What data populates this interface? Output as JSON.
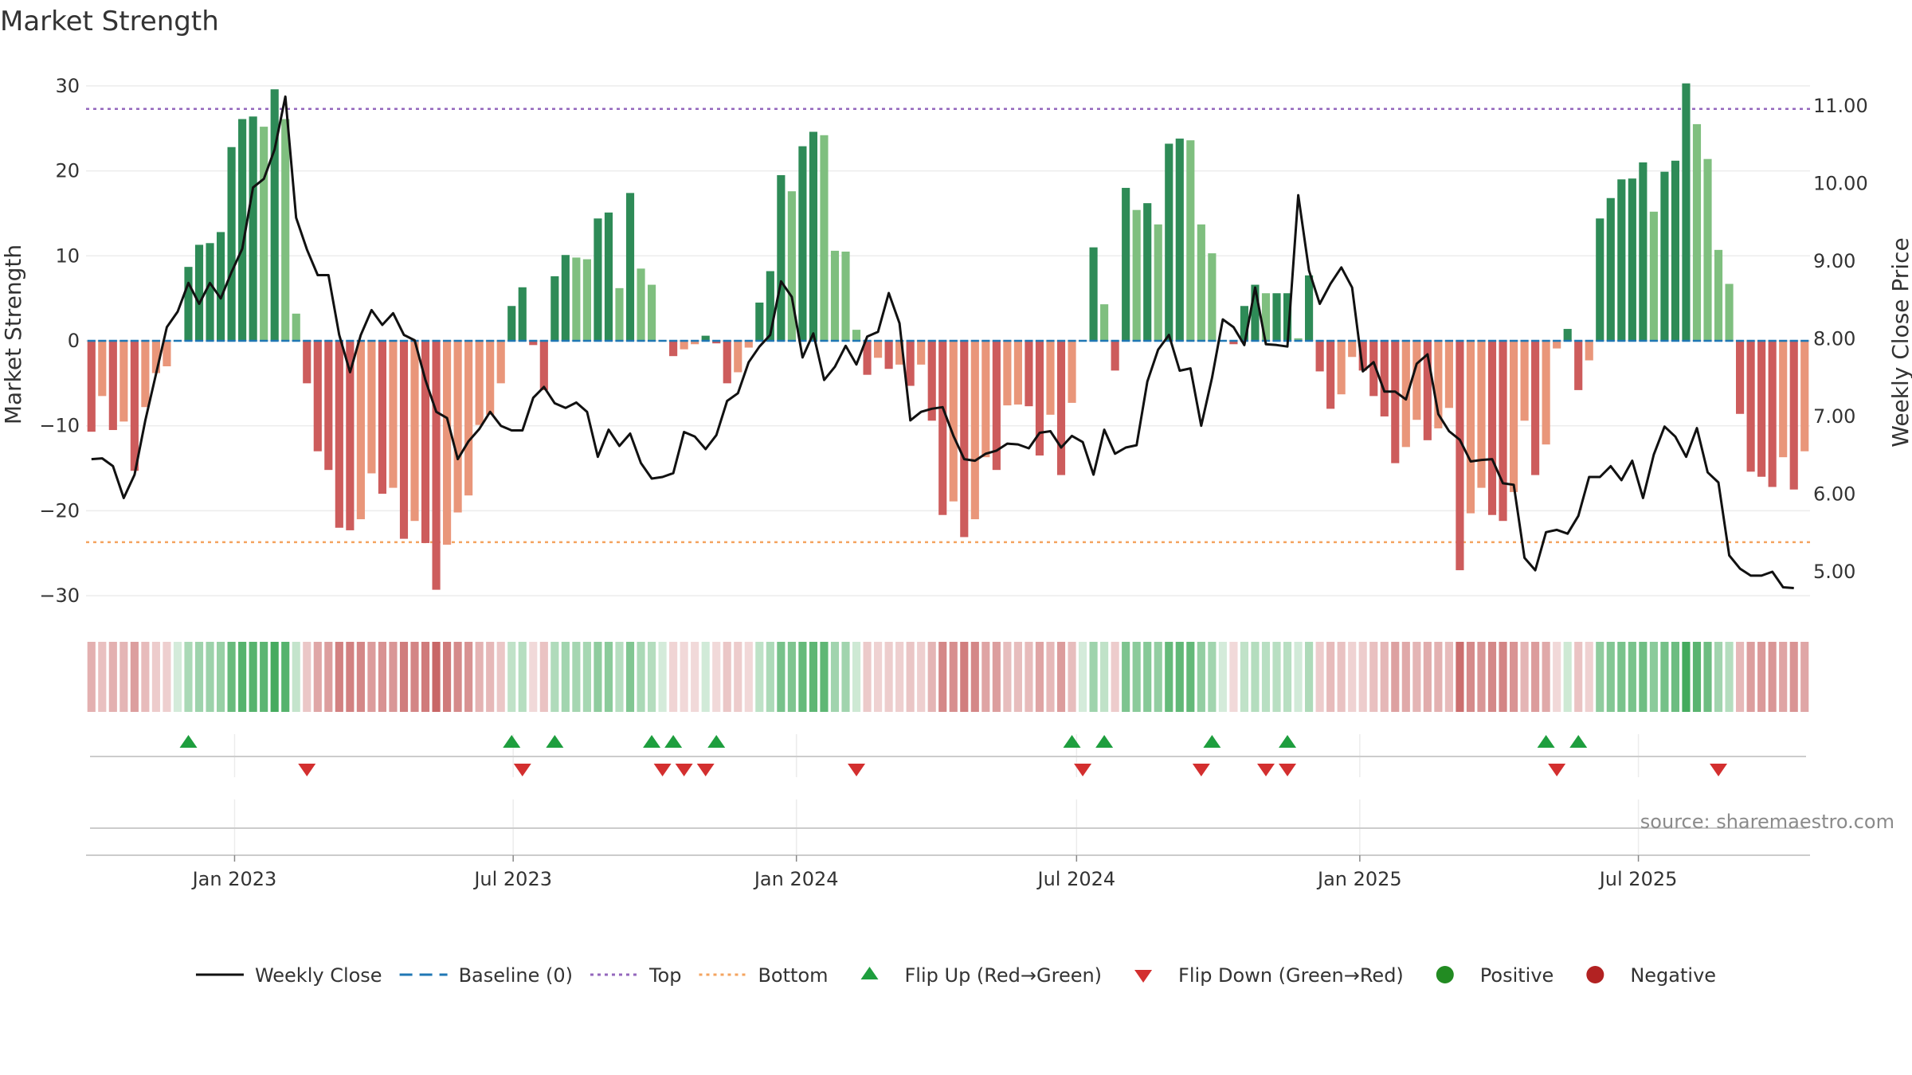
{
  "colors": {
    "pos_dark": "#2e8b57",
    "pos_light": "#7fbf7f",
    "neg_dark": "#cd5c5c",
    "neg_light": "#e9967a",
    "price_line": "#111111",
    "baseline": "#1f77b4",
    "top_line": "#9467bd",
    "bottom_line": "#f4a460",
    "flip_up": "#1e9e3e",
    "flip_down": "#d32f2f",
    "positive_dot": "#228b22",
    "negative_dot": "#b22222",
    "grid": "#ececec",
    "source": "#8a8a8a"
  },
  "chart_data": {
    "type": "bar",
    "title": "Market Strength",
    "ylabel_left": "Market Strength",
    "ylabel_right": "Weekly Close Price",
    "x_start": "2022-09-30",
    "x_step_days": 7,
    "x_ticks": [
      "Jan 2023",
      "Jul 2023",
      "Jan 2024",
      "Jul 2024",
      "Jan 2025",
      "Jul 2025"
    ],
    "ylim_left": [
      -32,
      32
    ],
    "yticks_left": [
      -30,
      -20,
      -10,
      0,
      10,
      20,
      30
    ],
    "ylim_right": [
      4.7,
      11.5
    ],
    "yticks_right": [
      "5.00",
      "6.00",
      "7.00",
      "8.00",
      "9.00",
      "10.00",
      "11.00"
    ],
    "top_threshold": 27.3,
    "bottom_threshold": -23.7,
    "grid": true,
    "legend_position": "bottom-center",
    "strength": [
      -10.7,
      -6.5,
      -10.5,
      -9.5,
      -15.3,
      -7.8,
      -3.8,
      -3.0,
      0,
      8.7,
      11.3,
      11.5,
      12.8,
      22.8,
      26.1,
      26.4,
      25.2,
      29.6,
      26.1,
      3.2,
      -5.0,
      -13.0,
      -15.2,
      -22.0,
      -22.3,
      -21.0,
      -15.6,
      -18.0,
      -17.3,
      -23.3,
      -21.2,
      -23.8,
      -29.3,
      -24.0,
      -20.2,
      -18.2,
      -9.9,
      -8.7,
      -5.0,
      4.1,
      6.3,
      -0.5,
      -5.8,
      7.6,
      10.1,
      9.8,
      9.6,
      14.4,
      15.1,
      6.2,
      17.4,
      8.5,
      6.6,
      0,
      -1.8,
      -1.0,
      -0.4,
      0.6,
      -0.3,
      -5.0,
      -3.7,
      -0.8,
      4.5,
      8.2,
      19.5,
      17.6,
      22.9,
      24.6,
      24.2,
      10.6,
      10.5,
      1.3,
      -4.0,
      -2.0,
      -3.3,
      -2.8,
      -5.3,
      -2.8,
      -9.4,
      -20.5,
      -18.9,
      -23.1,
      -21.0,
      -13.7,
      -15.2,
      -7.6,
      -7.5,
      -7.7,
      -13.5,
      -8.7,
      -15.8,
      -7.3,
      0,
      11.0,
      4.3,
      -3.5,
      18.0,
      15.4,
      16.2,
      13.7,
      23.2,
      23.8,
      23.6,
      13.7,
      10.3,
      0,
      -0.4,
      4.1,
      6.6,
      5.6,
      5.6,
      5.6,
      0.3,
      7.7,
      -3.6,
      -8.0,
      -6.3,
      -1.9,
      -3.5,
      -6.5,
      -8.9,
      -14.4,
      -12.5,
      -9.3,
      -11.7,
      -10.3,
      -7.9,
      -27.0,
      -20.3,
      -17.3,
      -20.5,
      -21.2,
      -17.8,
      -9.4,
      -15.8,
      -12.2,
      -0.9,
      1.4,
      -5.8,
      -2.3,
      14.4,
      16.8,
      19.0,
      19.1,
      21.0,
      15.2,
      19.9,
      21.2,
      30.3,
      25.5,
      21.4,
      10.7,
      6.7,
      -8.6,
      -15.4,
      -16.0,
      -17.2,
      -13.7,
      -17.5,
      -13.0
    ],
    "weekly_close": [
      6.45,
      6.46,
      6.36,
      5.95,
      6.25,
      6.95,
      7.55,
      8.15,
      8.35,
      8.72,
      8.45,
      8.72,
      8.52,
      8.86,
      9.16,
      9.95,
      10.06,
      10.44,
      11.12,
      9.56,
      9.15,
      8.82,
      8.82,
      8.05,
      7.57,
      8.05,
      8.37,
      8.18,
      8.33,
      8.05,
      7.98,
      7.47,
      7.06,
      6.98,
      6.45,
      6.68,
      6.84,
      7.06,
      6.88,
      6.82,
      6.82,
      7.24,
      7.38,
      7.17,
      7.11,
      7.18,
      7.06,
      6.48,
      6.83,
      6.62,
      6.78,
      6.4,
      6.2,
      6.22,
      6.27,
      6.8,
      6.74,
      6.58,
      6.76,
      7.2,
      7.3,
      7.7,
      7.9,
      8.05,
      8.74,
      8.54,
      7.76,
      8.07,
      7.47,
      7.64,
      7.91,
      7.67,
      8.03,
      8.09,
      8.59,
      8.2,
      6.95,
      7.06,
      7.1,
      7.12,
      6.75,
      6.45,
      6.43,
      6.52,
      6.56,
      6.65,
      6.64,
      6.59,
      6.79,
      6.81,
      6.6,
      6.75,
      6.67,
      6.25,
      6.83,
      6.52,
      6.6,
      6.63,
      7.45,
      7.86,
      8.05,
      7.59,
      7.62,
      6.88,
      7.5,
      8.25,
      8.15,
      7.92,
      8.66,
      7.93,
      7.92,
      7.9,
      9.85,
      8.88,
      8.45,
      8.71,
      8.92,
      8.66,
      7.58,
      7.7,
      7.32,
      7.32,
      7.22,
      7.68,
      7.8,
      7.03,
      6.81,
      6.7,
      6.42,
      6.44,
      6.45,
      6.14,
      6.12,
      5.18,
      5.02,
      5.51,
      5.54,
      5.49,
      5.72,
      6.22,
      6.22,
      6.36,
      6.18,
      6.43,
      5.95,
      6.51,
      6.87,
      6.74,
      6.48,
      6.85,
      6.28,
      6.15,
      5.21,
      5.04,
      4.95,
      4.95,
      5.0,
      4.8,
      4.79
    ],
    "flip_up_weeks": [
      9,
      39,
      43,
      52,
      54,
      58,
      91,
      94,
      104,
      111,
      135,
      138
    ],
    "flip_down_weeks": [
      20,
      40,
      53,
      55,
      57,
      71,
      92,
      103,
      109,
      111,
      136,
      151
    ],
    "legend": [
      {
        "key": "line",
        "label": "Weekly Close"
      },
      {
        "key": "baseline",
        "label": "Baseline (0)"
      },
      {
        "key": "top",
        "label": "Top"
      },
      {
        "key": "bottom",
        "label": "Bottom"
      },
      {
        "key": "flip_up",
        "label": "Flip Up (Red→Green)"
      },
      {
        "key": "flip_down",
        "label": "Flip Down (Green→Red)"
      },
      {
        "key": "positive",
        "label": "Positive"
      },
      {
        "key": "negative",
        "label": "Negative"
      }
    ]
  },
  "source": "source: sharemaestro.com"
}
